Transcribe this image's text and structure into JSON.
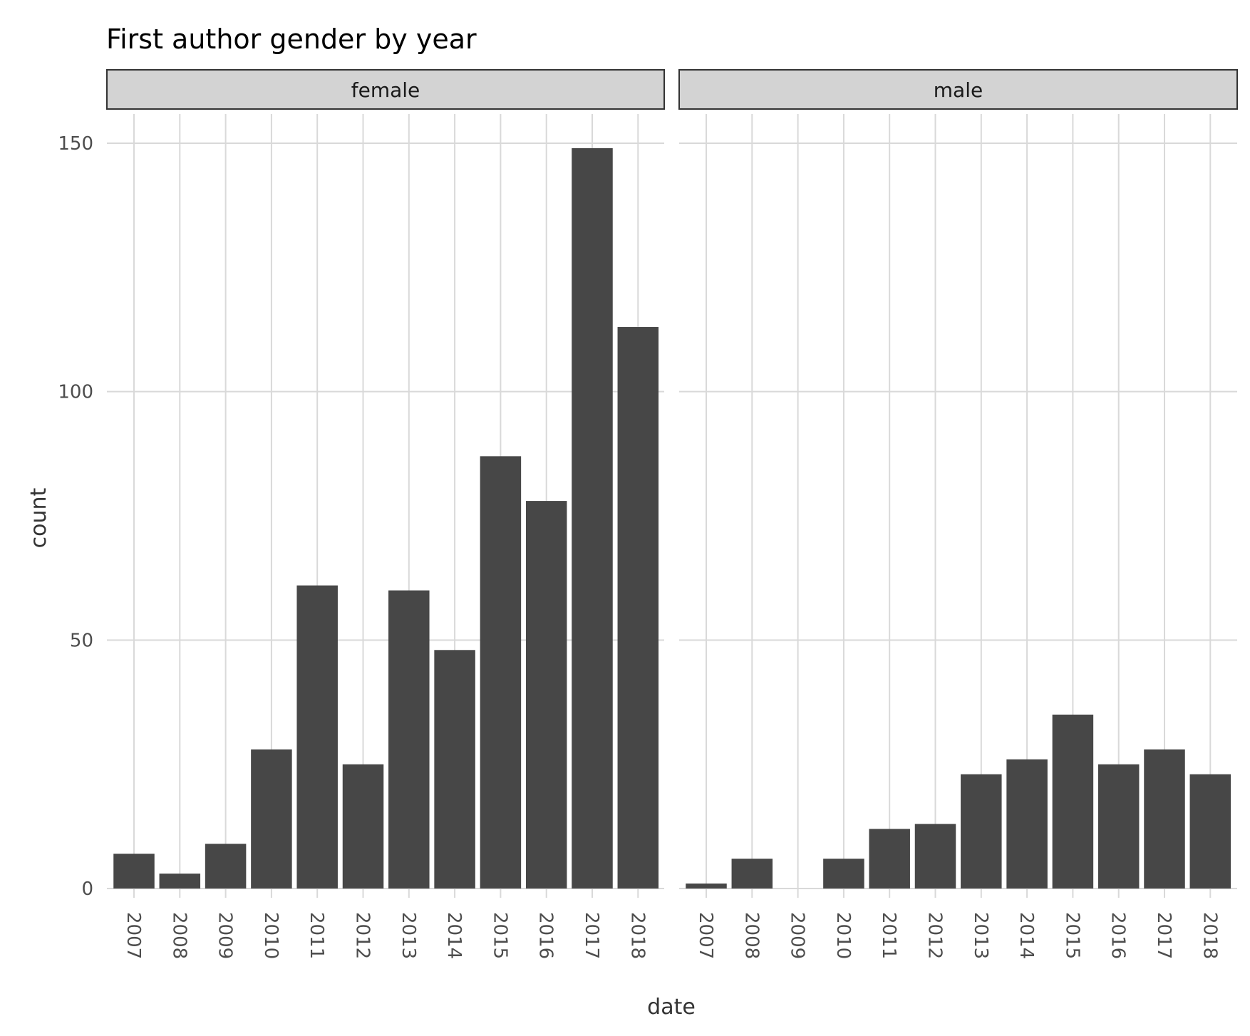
{
  "chart_data": {
    "type": "bar",
    "title": "First author gender by year",
    "xlabel": "date",
    "ylabel": "count",
    "ylim": [
      0,
      155
    ],
    "yticks": [
      0,
      50,
      100,
      150
    ],
    "categories": [
      "2007",
      "2008",
      "2009",
      "2010",
      "2011",
      "2012",
      "2013",
      "2014",
      "2015",
      "2016",
      "2017",
      "2018"
    ],
    "grid": true,
    "bar_color": "#474747",
    "panels": [
      {
        "name": "female",
        "values": [
          7,
          3,
          9,
          28,
          61,
          25,
          60,
          48,
          87,
          78,
          149,
          113
        ]
      },
      {
        "name": "male",
        "values": [
          1,
          6,
          0,
          6,
          12,
          13,
          23,
          26,
          35,
          25,
          28,
          23
        ]
      }
    ]
  }
}
